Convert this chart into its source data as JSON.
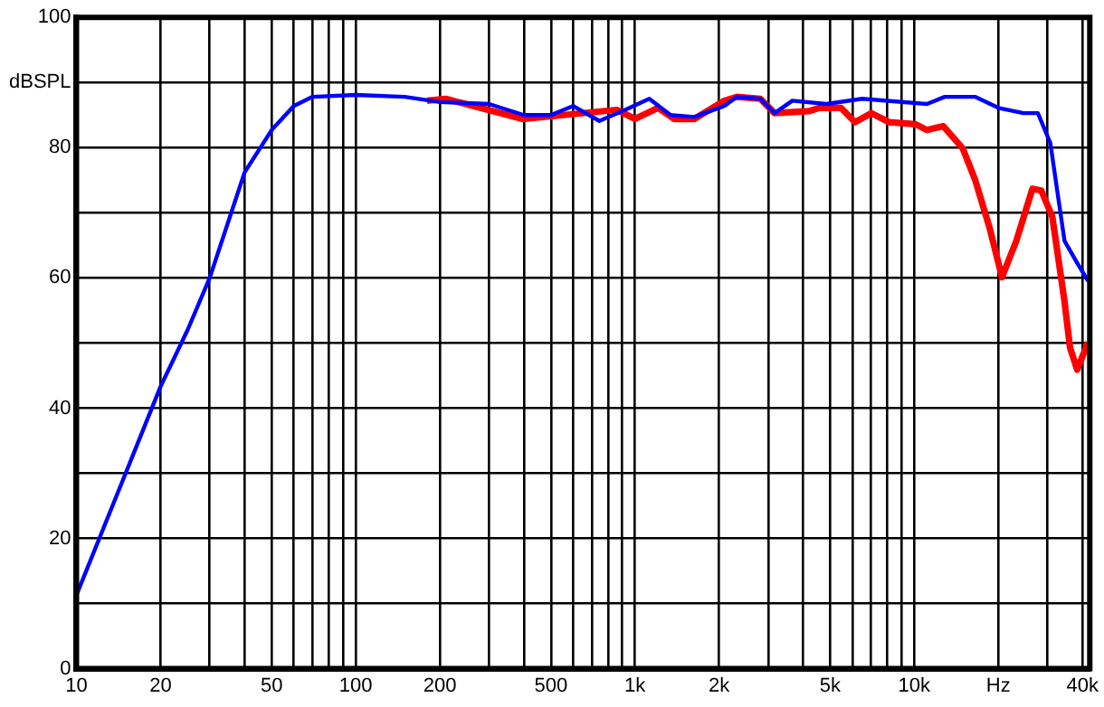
{
  "chart_data": {
    "type": "line",
    "log": "x",
    "grid": true,
    "legend": false,
    "marker": "none",
    "line_style": "solid",
    "xlim": [
      10,
      42500
    ],
    "ylim": [
      0,
      100
    ],
    "xticks": [
      10,
      20,
      {
        "value": 30,
        "label": null
      },
      {
        "value": 40,
        "label": null
      },
      50,
      {
        "value": 60,
        "label": null
      },
      {
        "value": 70,
        "label": null
      },
      {
        "value": 80,
        "label": null
      },
      {
        "value": 90,
        "label": null
      },
      100,
      200,
      {
        "value": 300,
        "label": null
      },
      {
        "value": 400,
        "label": null
      },
      500,
      {
        "value": 600,
        "label": null
      },
      {
        "value": 700,
        "label": null
      },
      {
        "value": 800,
        "label": null
      },
      {
        "value": 900,
        "label": null
      },
      {
        "value": 1000,
        "label": "1k"
      },
      {
        "value": 2000,
        "label": "2k"
      },
      {
        "value": 3000,
        "label": null
      },
      {
        "value": 4000,
        "label": null
      },
      {
        "value": 5000,
        "label": "5k"
      },
      {
        "value": 6000,
        "label": null
      },
      {
        "value": 7000,
        "label": null
      },
      {
        "value": 8000,
        "label": null
      },
      {
        "value": 9000,
        "label": null
      },
      {
        "value": 10000,
        "label": "10k"
      },
      {
        "value": 20000,
        "label": "Hz"
      },
      {
        "value": 30000,
        "label": null
      },
      {
        "value": 40000,
        "label": "40k"
      }
    ],
    "yticks": [
      0,
      {
        "value": 10,
        "label": null
      },
      20,
      {
        "value": 30,
        "label": null
      },
      40,
      {
        "value": 50,
        "label": null
      },
      60,
      {
        "value": 70,
        "label": null
      },
      80,
      {
        "value": 90,
        "label": "dBSPL"
      },
      100
    ],
    "series": [
      {
        "color": "#0000ff",
        "x": [
          10,
          15,
          20,
          25,
          30,
          40,
          50,
          60,
          70,
          100,
          150,
          200,
          300,
          400,
          500,
          600,
          745,
          900,
          1125,
          1340,
          1630,
          2090,
          2320,
          2810,
          3160,
          3660,
          4850,
          6500,
          11100,
          12850,
          16500,
          20000,
          24600,
          27700,
          30700,
          33000,
          34500,
          38300,
          41900
        ],
        "values": [
          11.3,
          30,
          43.3,
          52,
          60,
          76.2,
          82.7,
          86.4,
          87.8,
          88.1,
          87.8,
          87,
          86.7,
          85,
          85,
          86.4,
          84.1,
          85.6,
          87.5,
          85,
          84.7,
          86.4,
          87.8,
          87.5,
          85.3,
          87.2,
          86.7,
          87.5,
          86.7,
          87.8,
          87.8,
          86.1,
          85.3,
          85.3,
          80.7,
          71.4,
          65.7,
          62.3,
          59.5
        ]
      },
      {
        "color": "#ff0000",
        "x": [
          180,
          210,
          395,
          555,
          860,
          1000,
          1210,
          1380,
          1630,
          2090,
          2320,
          2810,
          3160,
          4190,
          4570,
          5460,
          6140,
          7020,
          8130,
          10100,
          11100,
          12700,
          14900,
          16500,
          18600,
          20600,
          23200,
          26500,
          28500,
          31200,
          34500,
          36100,
          38300,
          41900
        ],
        "values": [
          87.2,
          87.5,
          84.4,
          85,
          85.8,
          84.4,
          86.1,
          84.4,
          84.4,
          87.2,
          87.8,
          87.5,
          85.3,
          85.6,
          86.1,
          86.1,
          83.9,
          85.3,
          83.9,
          83.6,
          82.7,
          83.3,
          79.9,
          75.1,
          67.7,
          60.1,
          65.7,
          73.7,
          73.4,
          69.4,
          56.4,
          49.3,
          45.9,
          50.1
        ]
      }
    ]
  }
}
